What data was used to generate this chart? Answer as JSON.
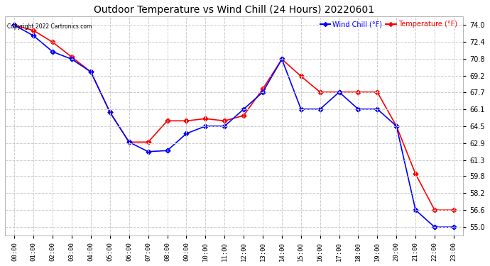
{
  "title": "Outdoor Temperature vs Wind Chill (24 Hours) 20220601",
  "copyright": "Copyright 2022 Cartronics.com",
  "legend_wind_chill": "Wind Chill (°F)",
  "legend_temperature": "Temperature (°F)",
  "hours": [
    "00:00",
    "01:00",
    "02:00",
    "03:00",
    "04:00",
    "05:00",
    "06:00",
    "07:00",
    "08:00",
    "09:00",
    "10:00",
    "11:00",
    "12:00",
    "13:00",
    "14:00",
    "15:00",
    "16:00",
    "17:00",
    "18:00",
    "19:00",
    "20:00",
    "21:00",
    "22:00",
    "23:00"
  ],
  "temperature": [
    74.0,
    73.5,
    72.4,
    71.0,
    69.6,
    65.8,
    63.0,
    63.0,
    65.0,
    65.0,
    65.2,
    65.0,
    65.5,
    68.0,
    70.8,
    69.2,
    67.7,
    67.7,
    67.7,
    67.7,
    64.5,
    60.0,
    56.6,
    56.6
  ],
  "wind_chill": [
    74.0,
    73.0,
    71.5,
    70.8,
    69.6,
    65.8,
    63.0,
    62.1,
    62.2,
    63.8,
    64.5,
    64.5,
    66.1,
    67.7,
    70.8,
    66.1,
    66.1,
    67.7,
    66.1,
    66.1,
    64.5,
    56.6,
    55.0,
    55.0
  ],
  "ylim_min": 54.2,
  "ylim_max": 74.8,
  "yticks": [
    74.0,
    72.4,
    70.8,
    69.2,
    67.7,
    66.1,
    64.5,
    62.9,
    61.3,
    59.8,
    58.2,
    56.6,
    55.0
  ],
  "temp_color": "#ff0000",
  "wind_color": "#0000ff",
  "bg_color": "#ffffff",
  "grid_color": "#cccccc",
  "title_color": "#000000",
  "copyright_color": "#000000",
  "marker": "D",
  "marker_size": 3.5,
  "line_width": 1.2
}
